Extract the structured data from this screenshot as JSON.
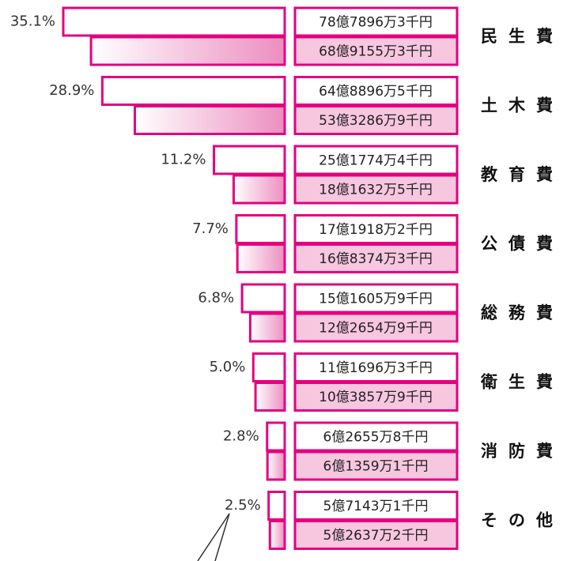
{
  "chart_data": {
    "type": "bar",
    "orientation": "horizontal",
    "categories": [
      "民生費",
      "土木費",
      "教育費",
      "公債費",
      "総務費",
      "衛生費",
      "消防費",
      "その他"
    ],
    "share_labels": [
      "35.1%",
      "28.9%",
      "11.2%",
      "7.7%",
      "6.8%",
      "5.0%",
      "2.8%",
      "2.5%"
    ],
    "series": [
      {
        "color": "#e4007f",
        "values": [
          7878963000,
          6488965000,
          2517744000,
          1719182000,
          1516059000,
          1116963000,
          626558000,
          571431000
        ],
        "value_labels": [
          "78億7896万3千円",
          "64億8896万5千円",
          "25億1774万4千円",
          "17億1918万2千円",
          "15億1605万9千円",
          "11億1696万3千円",
          "6億2655万8千円",
          "5億7143万1千円"
        ]
      },
      {
        "color": "#ec8ec0",
        "values": [
          6891553000,
          5332869000,
          1816325000,
          1683743000,
          1226549000,
          1038579000,
          613591000,
          526372000
        ],
        "value_labels": [
          "68億9155万3千円",
          "53億3286万9千円",
          "18億1632万5千円",
          "16億8374万3千円",
          "12億2654万9千円",
          "10億3857万9千円",
          "6億1359万1千円",
          "5億2637万2千円"
        ]
      }
    ]
  }
}
